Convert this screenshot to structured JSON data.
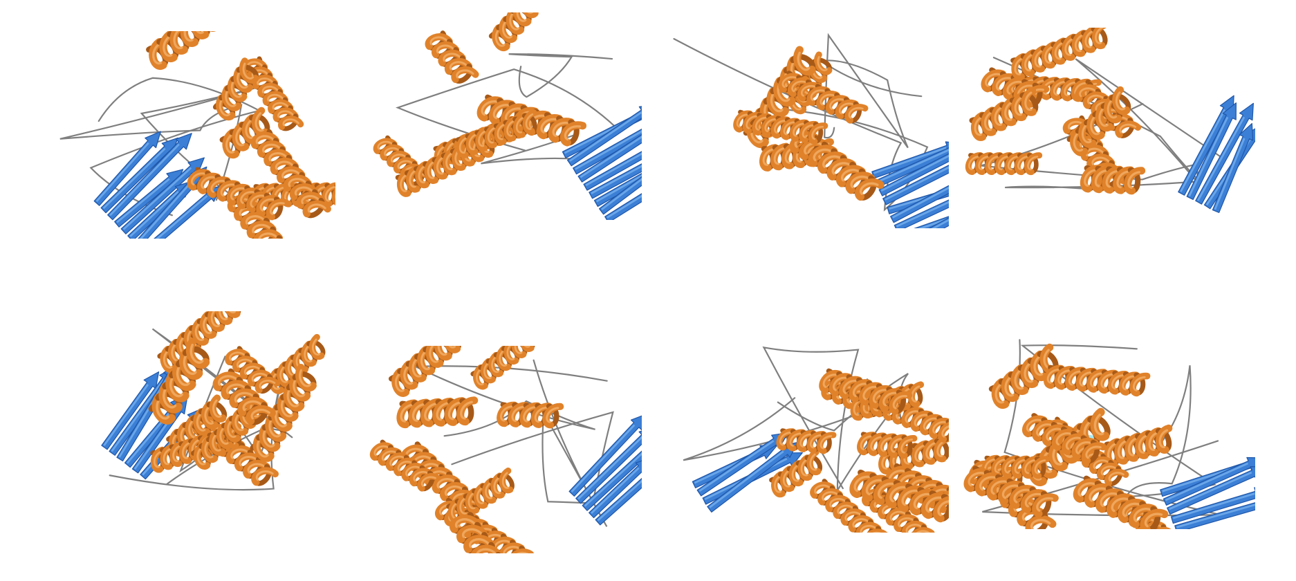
{
  "figure": {
    "colors": {
      "helix": "#e0822a",
      "helix_dark": "#a75a18",
      "helix_light": "#f3b06a",
      "strand": "#3b7fd6",
      "strand_dark": "#1f56a8",
      "strand_light": "#7fb6f0",
      "loop": "#7f7f7f",
      "highlight": "#9fe6ee"
    },
    "panels": [
      {
        "row": 1,
        "col": 1,
        "helices": 8,
        "strands": 8
      },
      {
        "row": 1,
        "col": 2,
        "helices": 7,
        "strands": 9
      },
      {
        "row": 1,
        "col": 3,
        "helices": 6,
        "strands": 9
      },
      {
        "row": 1,
        "col": 4,
        "helices": 9,
        "strands": 5
      },
      {
        "row": 2,
        "col": 1,
        "helices": 10,
        "strands": 6
      },
      {
        "row": 2,
        "col": 2,
        "helices": 9,
        "strands": 5
      },
      {
        "row": 2,
        "col": 3,
        "helices": 12,
        "strands": 4
      },
      {
        "row": 2,
        "col": 4,
        "helices": 12,
        "strands": 5
      }
    ]
  }
}
